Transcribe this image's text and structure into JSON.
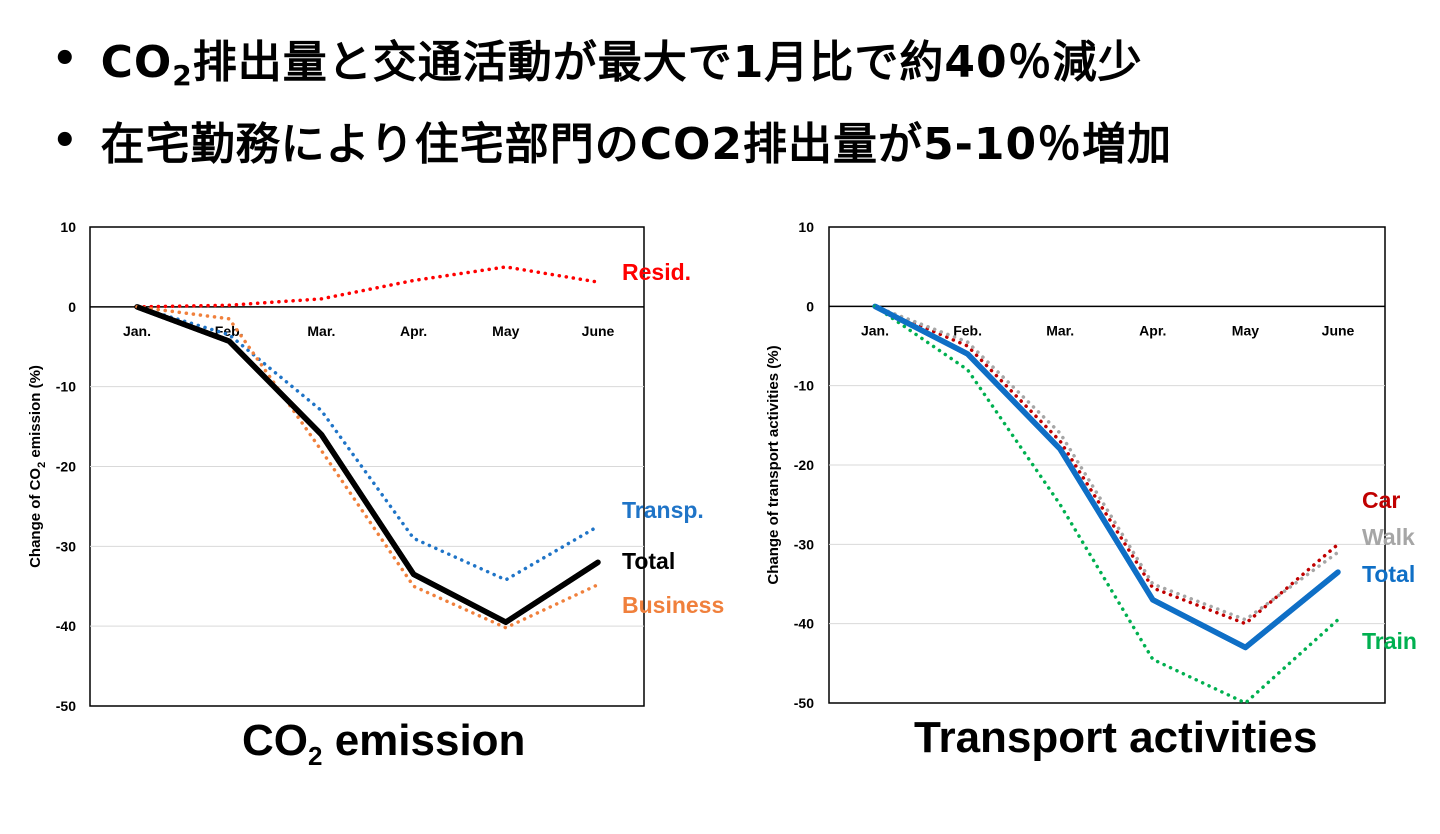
{
  "bullets": [
    {
      "pre": "CO",
      "sub": "2",
      "post": "排出量と交通活動が最大で1月比で約40％減少"
    },
    {
      "pre": "在宅勤務により住宅部門のCO2排出量が5-10％増加",
      "sub": "",
      "post": ""
    }
  ],
  "chart_titles": {
    "left": {
      "pre": "CO",
      "sub": "2",
      "post": " emission"
    },
    "right": {
      "pre": "Transport activities",
      "sub": "",
      "post": ""
    }
  },
  "chart_data": [
    {
      "type": "line",
      "ylabel_parts": {
        "pre": "Change of CO",
        "sub": "2",
        "post": " emission (%)"
      },
      "categories": [
        "Jan.",
        "Feb.",
        "Mar.",
        "Apr.",
        "May",
        "June"
      ],
      "ylim": [
        -50,
        10
      ],
      "yticks": [
        10,
        0,
        -10,
        -20,
        -30,
        -40,
        -50
      ],
      "grid": true,
      "series": [
        {
          "name": "Resid.",
          "color": "#ff0000",
          "style": "dotted",
          "values": [
            0,
            0.2,
            1,
            3.3,
            5,
            3.1
          ]
        },
        {
          "name": "Transp.",
          "color": "#1f74c7",
          "style": "dotted",
          "values": [
            0,
            -3.5,
            -13,
            -29,
            -34.2,
            -27.5
          ]
        },
        {
          "name": "Total",
          "color": "#000000",
          "style": "solid",
          "values": [
            0,
            -4.3,
            -16,
            -33.5,
            -39.5,
            -32
          ]
        },
        {
          "name": "Business",
          "color": "#f0803c",
          "style": "dotted",
          "values": [
            0,
            -1.5,
            -18,
            -35,
            -40.2,
            -34.8
          ]
        }
      ]
    },
    {
      "type": "line",
      "ylabel": "Change of transport activities (%)",
      "categories": [
        "Jan.",
        "Feb.",
        "Mar.",
        "Apr.",
        "May",
        "June"
      ],
      "ylim": [
        -50,
        10
      ],
      "yticks": [
        10,
        0,
        -10,
        -20,
        -30,
        -40,
        -50
      ],
      "grid": true,
      "series": [
        {
          "name": "Car",
          "color": "#c00000",
          "style": "dotted",
          "values": [
            0,
            -5,
            -17,
            -35.5,
            -40,
            -30
          ]
        },
        {
          "name": "Walk",
          "color": "#a6a6a6",
          "style": "dotted",
          "values": [
            0,
            -4.5,
            -16,
            -35,
            -39.5,
            -31
          ]
        },
        {
          "name": "Total",
          "color": "#0f6fc6",
          "style": "solid",
          "values": [
            0,
            -6,
            -18,
            -37,
            -43,
            -33.5
          ]
        },
        {
          "name": "Train",
          "color": "#00b050",
          "style": "dotted",
          "values": [
            0,
            -8,
            -25,
            -44.5,
            -50,
            -39.5
          ]
        }
      ]
    }
  ]
}
